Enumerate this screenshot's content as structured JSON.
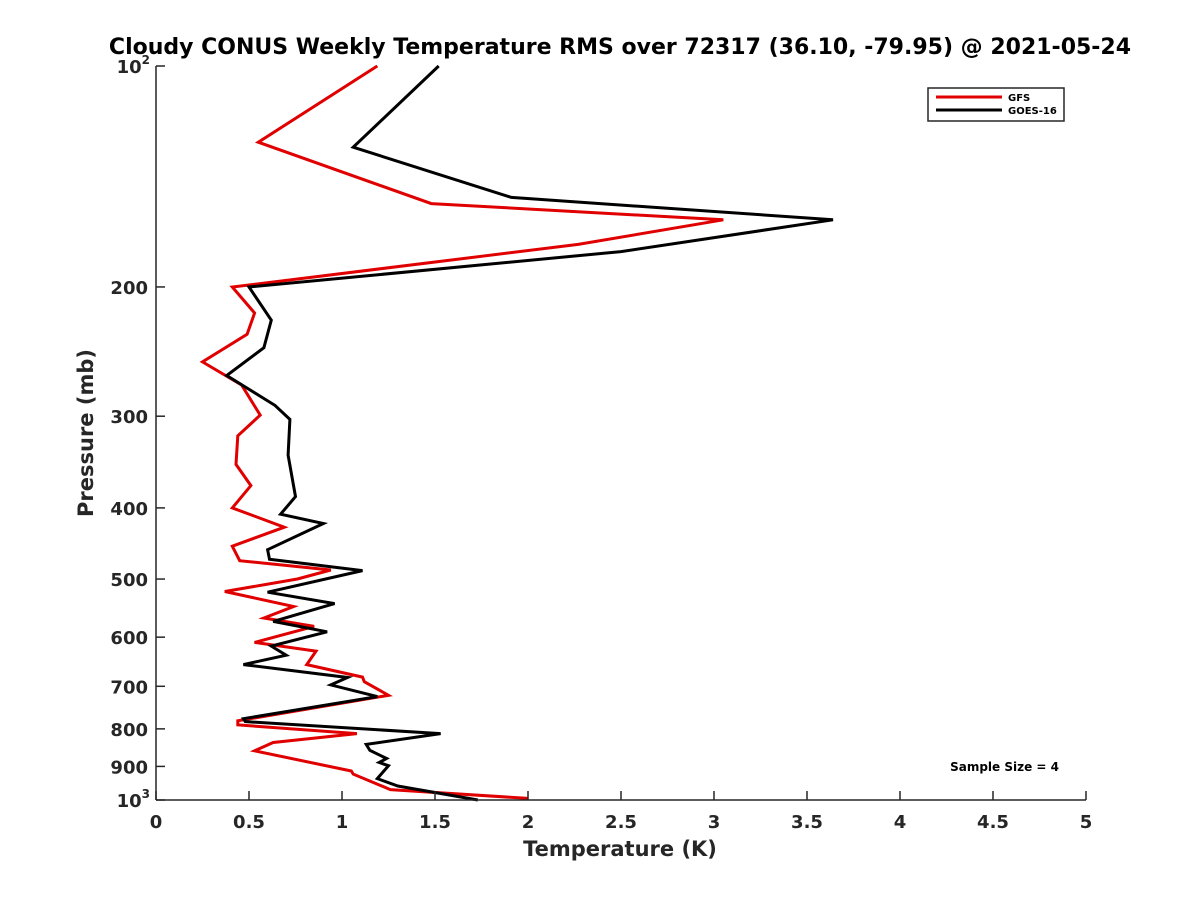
{
  "chart_data": {
    "type": "line",
    "title": "Cloudy CONUS Weekly Temperature RMS over 72317 (36.10, -79.95) @ 2021-05-24",
    "xlabel": "Temperature (K)",
    "ylabel": "Pressure (mb)",
    "xlim": [
      0,
      5
    ],
    "ylim": [
      100,
      1000
    ],
    "y_scale": "log",
    "y_reversed": true,
    "grid": false,
    "legend_position": "top-right",
    "x_ticks": [
      0,
      0.5,
      1,
      1.5,
      2,
      2.5,
      3,
      3.5,
      4,
      4.5,
      5
    ],
    "x_tick_labels": [
      "0",
      "0.5",
      "1",
      "1.5",
      "2",
      "2.5",
      "3",
      "3.5",
      "4",
      "4.5",
      "5"
    ],
    "y_ticks": [
      100,
      200,
      300,
      400,
      500,
      600,
      700,
      800,
      900,
      1000
    ],
    "y_tick_labels": [
      {
        "base": "10",
        "exp": "2"
      },
      {
        "base": "200",
        "exp": ""
      },
      {
        "base": "300",
        "exp": ""
      },
      {
        "base": "400",
        "exp": ""
      },
      {
        "base": "500",
        "exp": ""
      },
      {
        "base": "600",
        "exp": ""
      },
      {
        "base": "700",
        "exp": ""
      },
      {
        "base": "800",
        "exp": ""
      },
      {
        "base": "900",
        "exp": ""
      },
      {
        "base": "10",
        "exp": "3"
      }
    ],
    "annotation": "Sample Size = 4",
    "series": [
      {
        "name": "GFS",
        "color": "#e00000",
        "points": [
          [
            1.19,
            100
          ],
          [
            0.55,
            127
          ],
          [
            1.48,
            154
          ],
          [
            3.05,
            162
          ],
          [
            2.27,
            175
          ],
          [
            0.41,
            200
          ],
          [
            0.53,
            217
          ],
          [
            0.49,
            232
          ],
          [
            0.25,
            253
          ],
          [
            0.46,
            272
          ],
          [
            0.56,
            299
          ],
          [
            0.44,
            319
          ],
          [
            0.43,
            349
          ],
          [
            0.51,
            373
          ],
          [
            0.41,
            400
          ],
          [
            0.69,
            425
          ],
          [
            0.41,
            451
          ],
          [
            0.45,
            472
          ],
          [
            0.94,
            486
          ],
          [
            0.76,
            500
          ],
          [
            0.37,
            520
          ],
          [
            0.74,
            545
          ],
          [
            0.58,
            565
          ],
          [
            0.85,
            580
          ],
          [
            0.53,
            610
          ],
          [
            0.86,
            627
          ],
          [
            0.81,
            654
          ],
          [
            1.11,
            680
          ],
          [
            1.12,
            690
          ],
          [
            1.25,
            720
          ],
          [
            0.44,
            780
          ],
          [
            0.44,
            790
          ],
          [
            1.08,
            812
          ],
          [
            0.63,
            835
          ],
          [
            0.53,
            857
          ],
          [
            1.05,
            913
          ],
          [
            1.06,
            922
          ],
          [
            1.26,
            968
          ],
          [
            2.0,
            995
          ]
        ]
      },
      {
        "name": "GOES-16",
        "color": "#000000",
        "points": [
          [
            1.52,
            100
          ],
          [
            1.06,
            129
          ],
          [
            1.91,
            151
          ],
          [
            3.64,
            162
          ],
          [
            2.5,
            179
          ],
          [
            0.5,
            200
          ],
          [
            0.62,
            222
          ],
          [
            0.58,
            242
          ],
          [
            0.38,
            264
          ],
          [
            0.64,
            290
          ],
          [
            0.72,
            303
          ],
          [
            0.71,
            339
          ],
          [
            0.75,
            386
          ],
          [
            0.67,
            408
          ],
          [
            0.9,
            420
          ],
          [
            0.6,
            456
          ],
          [
            0.61,
            470
          ],
          [
            1.11,
            487
          ],
          [
            0.6,
            521
          ],
          [
            0.96,
            540
          ],
          [
            0.63,
            571
          ],
          [
            0.92,
            590
          ],
          [
            0.62,
            617
          ],
          [
            0.7,
            635
          ],
          [
            0.47,
            654
          ],
          [
            1.03,
            681
          ],
          [
            0.94,
            697
          ],
          [
            1.19,
            723
          ],
          [
            0.47,
            775
          ],
          [
            0.48,
            782
          ],
          [
            1.53,
            812
          ],
          [
            1.13,
            840
          ],
          [
            1.15,
            856
          ],
          [
            1.24,
            878
          ],
          [
            1.2,
            889
          ],
          [
            1.25,
            898
          ],
          [
            1.19,
            935
          ],
          [
            1.3,
            957
          ],
          [
            1.73,
            1000
          ]
        ]
      }
    ]
  }
}
